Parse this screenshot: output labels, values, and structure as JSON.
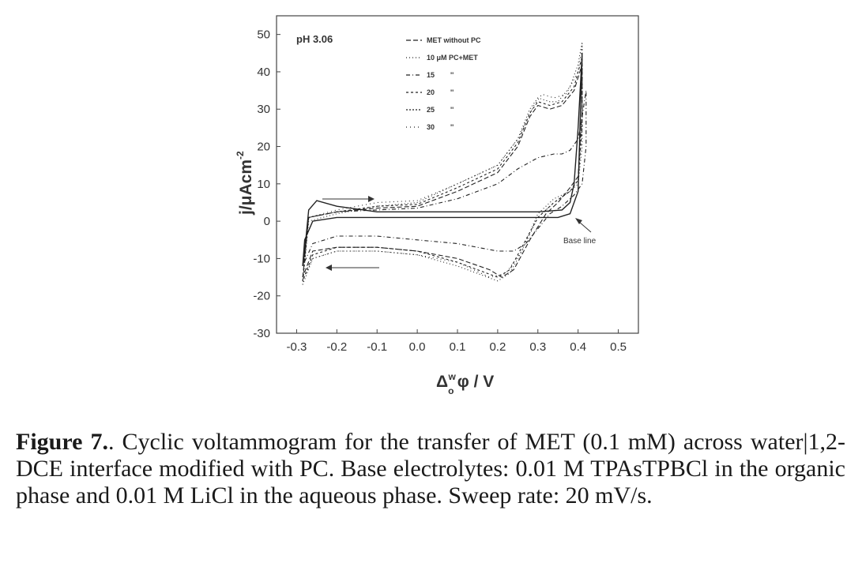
{
  "chart_data": {
    "type": "line",
    "xlabel_parts": {
      "delta": "Δ",
      "sub": "o",
      "sup": "w",
      "rest": "φ / V"
    },
    "ylabel_parts": {
      "main": "j/μAcm",
      "sup": "-2"
    },
    "xlim": [
      -0.35,
      0.55
    ],
    "ylim": [
      -30,
      55
    ],
    "xticks": [
      "-0.3",
      "-0.2",
      "-0.1",
      "0.0",
      "0.1",
      "0.2",
      "0.3",
      "0.4",
      "0.5"
    ],
    "yticks": [
      "50",
      "40",
      "30",
      "20",
      "10",
      "0",
      "-10",
      "-20",
      "-30"
    ],
    "annotations": {
      "ph": "pH 3.06",
      "baseline": "Base line"
    },
    "legend": [
      {
        "label": "MET without PC",
        "dash": "6,3"
      },
      {
        "label": "10 μM PC+MET",
        "dash": "1,3"
      },
      {
        "label": "15",
        "ditto": "''",
        "dash": "5,3,1,3"
      },
      {
        "label": "20",
        "ditto": "''",
        "dash": "3,3"
      },
      {
        "label": "25",
        "ditto": "''",
        "dash": "2,2"
      },
      {
        "label": "30",
        "ditto": "''",
        "dash": "1,4"
      }
    ],
    "series": [
      {
        "dash": "",
        "x": [
          -0.28,
          -0.27,
          -0.25,
          -0.2,
          -0.1,
          0.0,
          0.1,
          0.2,
          0.3,
          0.36,
          0.38,
          0.39,
          0.4,
          0.41,
          0.4,
          0.38,
          0.35,
          0.3,
          0.2,
          0.1,
          0.0,
          -0.1,
          -0.2,
          -0.26,
          -0.28,
          -0.285,
          -0.28
        ],
        "y": [
          -8,
          3,
          5.5,
          4,
          2.5,
          2.5,
          2.5,
          2.5,
          2.5,
          3,
          5,
          10,
          25,
          45,
          8,
          2,
          1,
          1,
          1,
          1,
          1,
          1,
          1,
          0,
          -5,
          -12,
          -8
        ]
      },
      {
        "dash": "1,3",
        "x": [
          -0.285,
          -0.27,
          -0.2,
          -0.1,
          0.0,
          0.1,
          0.2,
          0.25,
          0.28,
          0.3,
          0.33,
          0.35,
          0.38,
          0.4,
          0.41,
          0.41,
          0.4,
          0.38,
          0.34,
          0.32,
          0.3,
          0.26,
          0.23,
          0.2,
          0.1,
          0.0,
          -0.1,
          -0.2,
          -0.26,
          -0.285
        ],
        "y": [
          -17,
          0,
          2,
          4,
          5,
          10,
          15,
          22,
          30,
          33,
          32,
          32,
          36,
          42,
          48,
          20,
          10,
          8,
          6,
          4,
          2,
          -8,
          -14,
          -16,
          -12,
          -9,
          -8,
          -8,
          -10,
          -17
        ]
      },
      {
        "dash": "6,3",
        "x": [
          -0.285,
          -0.27,
          -0.2,
          -0.1,
          0.0,
          0.1,
          0.2,
          0.25,
          0.28,
          0.3,
          0.33,
          0.36,
          0.39,
          0.41,
          0.41,
          0.4,
          0.38,
          0.35,
          0.32,
          0.28,
          0.24,
          0.21,
          0.18,
          0.1,
          0.0,
          -0.1,
          -0.2,
          -0.26,
          -0.285
        ],
        "y": [
          -15,
          1,
          2.5,
          3.5,
          4,
          8,
          13,
          20,
          28,
          31,
          30,
          31,
          35,
          42,
          30,
          12,
          9,
          5,
          2,
          -5,
          -13,
          -15,
          -13,
          -10,
          -8,
          -7,
          -7,
          -8,
          -15
        ]
      },
      {
        "dash": "5,3,1,3",
        "x": [
          -0.285,
          -0.27,
          -0.2,
          -0.1,
          0.0,
          0.1,
          0.2,
          0.25,
          0.3,
          0.34,
          0.36,
          0.38,
          0.4,
          0.41,
          0.42,
          0.42,
          0.41,
          0.39,
          0.36,
          0.33,
          0.3,
          0.27,
          0.24,
          0.2,
          0.1,
          0.0,
          -0.1,
          -0.2,
          -0.26,
          -0.285
        ],
        "y": [
          -12,
          1,
          2.5,
          3,
          3.5,
          6,
          10,
          14,
          17,
          18,
          18,
          19,
          22,
          28,
          35,
          20,
          10,
          7,
          4,
          2,
          -2,
          -6,
          -8,
          -8,
          -6,
          -5,
          -4,
          -4,
          -6,
          -12
        ]
      },
      {
        "dash": "3,3",
        "x": [
          -0.285,
          -0.27,
          -0.2,
          -0.1,
          0.0,
          0.1,
          0.2,
          0.25,
          0.28,
          0.3,
          0.33,
          0.36,
          0.39,
          0.41,
          0.41,
          0.4,
          0.38,
          0.34,
          0.3,
          0.26,
          0.23,
          0.2,
          0.1,
          0.0,
          -0.1,
          -0.2,
          -0.26,
          -0.285
        ],
        "y": [
          -16,
          1,
          2.5,
          4,
          4.5,
          9,
          14,
          21,
          29,
          32,
          31,
          32,
          36,
          44,
          25,
          11,
          8,
          5,
          1,
          -7,
          -13,
          -15,
          -11,
          -8,
          -7,
          -7,
          -9,
          -16
        ]
      },
      {
        "dash": "1,4",
        "x": [
          -0.285,
          -0.27,
          -0.2,
          -0.1,
          0.0,
          0.1,
          0.2,
          0.25,
          0.29,
          0.31,
          0.34,
          0.37,
          0.4,
          0.41,
          0.41,
          0.4,
          0.38,
          0.34,
          0.3,
          0.26,
          0.22,
          0.18,
          0.1,
          0.0,
          -0.1,
          -0.2,
          -0.26,
          -0.285
        ],
        "y": [
          -16,
          1,
          3,
          5,
          5.5,
          10,
          15,
          22,
          31,
          34,
          33,
          34,
          40,
          47,
          28,
          11,
          8,
          5,
          1,
          -8,
          -14,
          -15,
          -11,
          -9,
          -8,
          -8,
          -10,
          -16
        ]
      }
    ]
  },
  "caption": {
    "label": "Figure 7.",
    "text": ". Cyclic voltammogram for the transfer of MET (0.1 mM) across water|1,2-DCE interface modified with PC. Base electrolytes: 0.01 M TPAsTPBCl in the organic phase and 0.01 M LiCl in the aqueous phase. Sweep rate: 20 mV/s."
  }
}
